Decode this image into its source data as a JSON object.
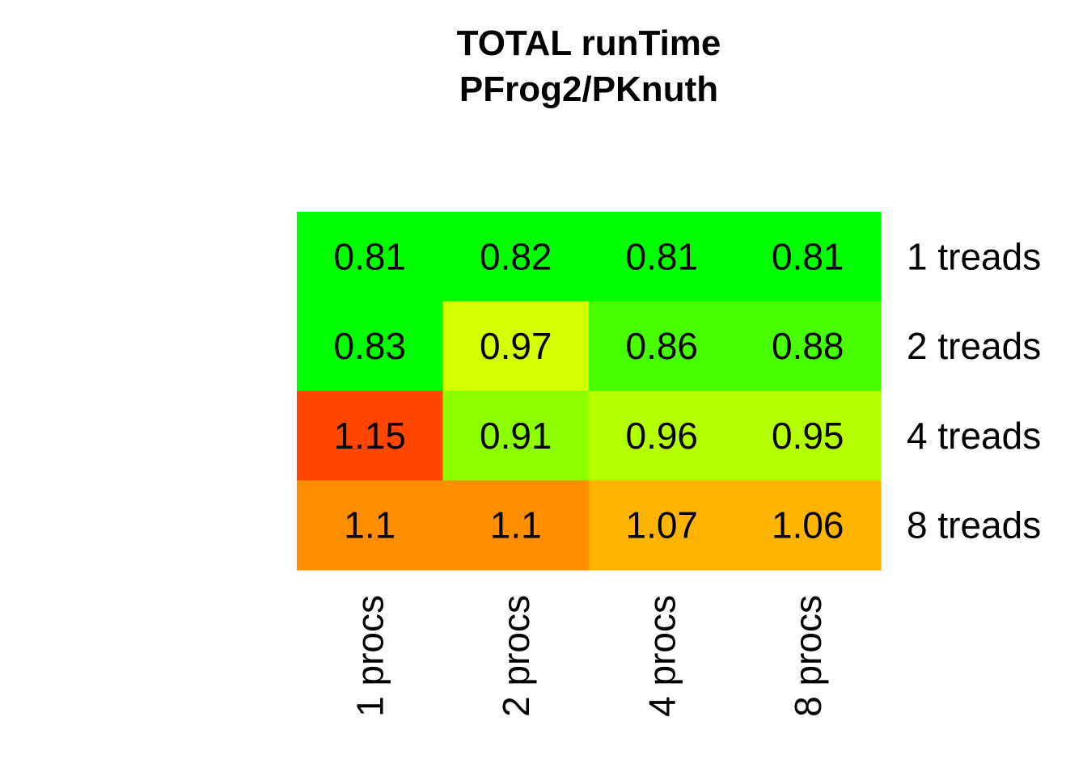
{
  "chart_data": {
    "type": "heatmap",
    "title": "TOTAL  runTime",
    "subtitle": "PFrog2/PKnuth",
    "columns": [
      "1 procs",
      "2 procs",
      "4 procs",
      "8 procs"
    ],
    "rows": [
      "1 treads",
      "2 treads",
      "4 treads",
      "8 treads"
    ],
    "values": [
      [
        0.81,
        0.82,
        0.81,
        0.81
      ],
      [
        0.83,
        0.97,
        0.86,
        0.88
      ],
      [
        1.15,
        0.91,
        0.96,
        0.95
      ],
      [
        1.1,
        1.1,
        1.07,
        1.06
      ]
    ],
    "labels": [
      [
        "0.81",
        "0.82",
        "0.81",
        "0.81"
      ],
      [
        "0.83",
        "0.97",
        "0.86",
        "0.88"
      ],
      [
        "1.15",
        "0.91",
        "0.96",
        "0.95"
      ],
      [
        "1.1",
        "1.1",
        "1.07",
        "1.06"
      ]
    ],
    "colors": [
      [
        "#00ff00",
        "#00ff00",
        "#00ff00",
        "#00ff00"
      ],
      [
        "#00ff00",
        "#d4ff00",
        "#47ff00",
        "#47ff00"
      ],
      [
        "#ff4700",
        "#8eff00",
        "#b4ff00",
        "#b4ff00"
      ],
      [
        "#ff8e00",
        "#ff8e00",
        "#ffb400",
        "#ffb400"
      ]
    ],
    "grid": false,
    "legend": "none"
  }
}
